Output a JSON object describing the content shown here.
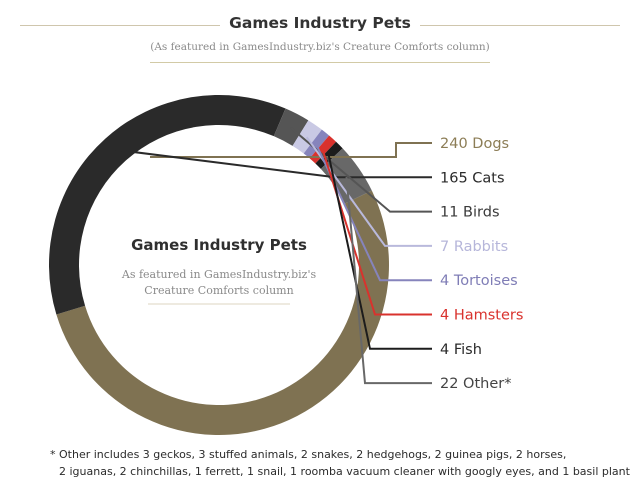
{
  "header": {
    "title": "Games Industry Pets",
    "subtitle": "(As featured in GamesIndustry.biz's Creature Comforts column)"
  },
  "chart_data": {
    "type": "donut",
    "center_title": "Games Industry Pets",
    "center_subtitle": [
      "As featured in GamesIndustry.biz's",
      "Creature Comforts column"
    ],
    "slices": [
      {
        "label": "240 Dogs",
        "value": 240,
        "color": "#7f7252",
        "label_color": "#8c7d56"
      },
      {
        "label": "165 Cats",
        "value": 165,
        "color": "#2a2a2a",
        "label_color": "#2a2a2a"
      },
      {
        "label": "11 Birds",
        "value": 11,
        "color": "#555555",
        "label_color": "#3a3a3a"
      },
      {
        "label": "7 Rabbits",
        "value": 7,
        "color": "#c9c9e4",
        "label_color": "#b6b6da"
      },
      {
        "label": "4 Tortoises",
        "value": 4,
        "color": "#8684bc",
        "label_color": "#7f7db6"
      },
      {
        "label": "4 Hamsters",
        "value": 4,
        "color": "#d9322d",
        "label_color": "#d9322d"
      },
      {
        "label": "4 Fish",
        "value": 4,
        "color": "#1c1c1c",
        "label_color": "#2a2a2a"
      },
      {
        "label": "22 Other*",
        "value": 22,
        "color": "#686868",
        "label_color": "#444444"
      }
    ]
  },
  "footnote": {
    "line1": "* Other includes 3 geckos, 3 stuffed animals, 2 snakes, 2 hedgehogs, 2 guinea pigs, 2 horses,",
    "line2": "2 iguanas, 2 chinchillas, 1 ferrett,  1 snail, 1 roomba vacuum cleaner with googly eyes, and 1 basil plant"
  }
}
